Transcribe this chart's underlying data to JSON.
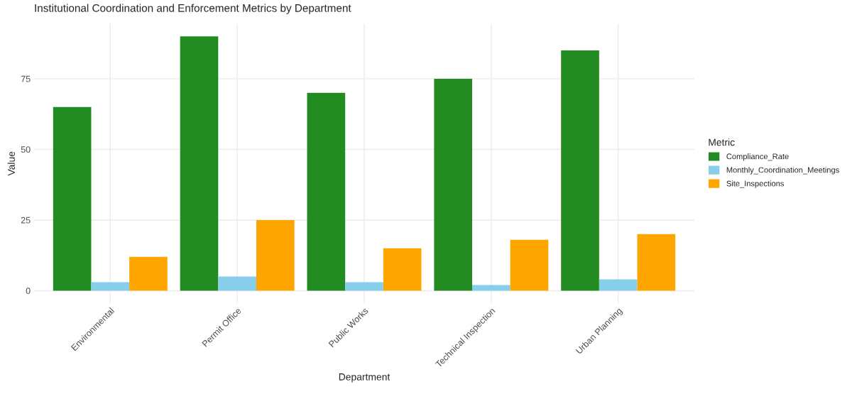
{
  "chart_data": {
    "type": "bar",
    "title": "Institutional Coordination and Enforcement Metrics by Department",
    "xlabel": "Department",
    "ylabel": "Value",
    "legend_title": "Metric",
    "categories": [
      "Environmental",
      "Permit Office",
      "Public Works",
      "Technical Inspection",
      "Urban Planning"
    ],
    "series": [
      {
        "name": "Compliance_Rate",
        "color": "#228b22",
        "values": [
          65,
          90,
          70,
          75,
          85
        ]
      },
      {
        "name": "Monthly_Coordination_Meetings",
        "color": "#87ceeb",
        "values": [
          3,
          5,
          3,
          2,
          4
        ]
      },
      {
        "name": "Site_Inspections",
        "color": "#ffa500",
        "values": [
          12,
          25,
          15,
          18,
          20
        ]
      }
    ],
    "ylim": [
      -4.5,
      94.5
    ],
    "yticks": [
      0,
      25,
      50,
      75
    ],
    "grid": true,
    "legend": "right"
  }
}
